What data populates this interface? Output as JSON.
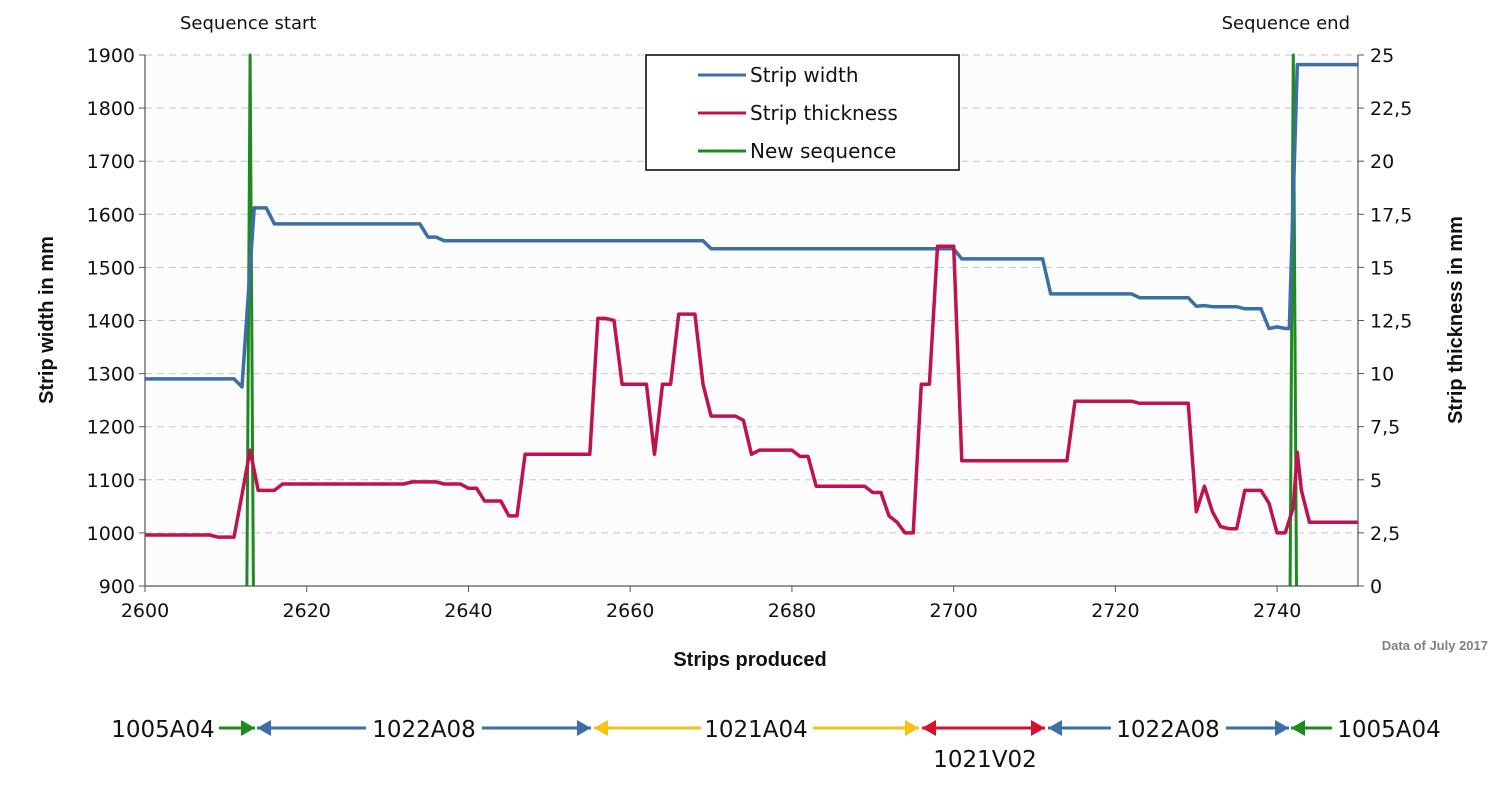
{
  "chart_data": {
    "type": "line",
    "xlabel": "Strips produced",
    "ylabel_left": "Strip width in mm",
    "ylabel_right": "Strip thickness in mm",
    "xlim": [
      2600,
      2750
    ],
    "ylim_left": [
      900,
      1900
    ],
    "ylim_right": [
      0,
      25
    ],
    "x_ticks": [
      "2600",
      "2620",
      "2640",
      "2660",
      "2680",
      "2700",
      "2720",
      "2740"
    ],
    "y_left_ticks": [
      "900",
      "1000",
      "1100",
      "1200",
      "1300",
      "1400",
      "1500",
      "1600",
      "1700",
      "1800",
      "1900"
    ],
    "y_right_ticks": [
      "0",
      "2,5",
      "5",
      "7,5",
      "10",
      "12,5",
      "15",
      "17,5",
      "20",
      "22,5",
      "25"
    ],
    "grid": "horizontal dashed",
    "legend_position": "top-center",
    "annotations": {
      "sequence_start": "Sequence start",
      "sequence_end": "Sequence end",
      "data_note": "Data of July 2017"
    },
    "series": [
      {
        "name": "Strip width",
        "axis": "left",
        "color": "#3b6fa6",
        "points": [
          [
            2600,
            1290
          ],
          [
            2611,
            1290
          ],
          [
            2612,
            1275
          ],
          [
            2613.5,
            1612
          ],
          [
            2615,
            1612
          ],
          [
            2616,
            1582
          ],
          [
            2634,
            1582
          ],
          [
            2635,
            1557
          ],
          [
            2636,
            1557
          ],
          [
            2637,
            1550
          ],
          [
            2669,
            1550
          ],
          [
            2670,
            1535
          ],
          [
            2700,
            1535
          ],
          [
            2701,
            1516
          ],
          [
            2711,
            1516
          ],
          [
            2712,
            1450
          ],
          [
            2722,
            1450
          ],
          [
            2723,
            1443
          ],
          [
            2729,
            1443
          ],
          [
            2730,
            1427
          ],
          [
            2731,
            1428
          ],
          [
            2732,
            1426
          ],
          [
            2735,
            1426
          ],
          [
            2736,
            1422
          ],
          [
            2738,
            1422
          ],
          [
            2739,
            1385
          ],
          [
            2740,
            1388
          ],
          [
            2741,
            1385
          ],
          [
            2741.5,
            1385
          ],
          [
            2742.5,
            1882
          ],
          [
            2750,
            1882
          ]
        ]
      },
      {
        "name": "Strip thickness",
        "axis": "right",
        "color": "#c0124d",
        "points": [
          [
            2600,
            2.4
          ],
          [
            2608,
            2.4
          ],
          [
            2609,
            2.3
          ],
          [
            2611,
            2.3
          ],
          [
            2612,
            4.3
          ],
          [
            2613,
            6.4
          ],
          [
            2614,
            4.5
          ],
          [
            2616,
            4.5
          ],
          [
            2617,
            4.8
          ],
          [
            2632,
            4.8
          ],
          [
            2633,
            4.9
          ],
          [
            2636,
            4.9
          ],
          [
            2637,
            4.8
          ],
          [
            2639,
            4.8
          ],
          [
            2640,
            4.6
          ],
          [
            2641,
            4.6
          ],
          [
            2642,
            4.0
          ],
          [
            2644,
            4.0
          ],
          [
            2645,
            3.3
          ],
          [
            2646,
            3.3
          ],
          [
            2647,
            6.2
          ],
          [
            2655,
            6.2
          ],
          [
            2656,
            12.6
          ],
          [
            2657,
            12.6
          ],
          [
            2658,
            12.5
          ],
          [
            2659,
            9.5
          ],
          [
            2662,
            9.5
          ],
          [
            2663,
            6.2
          ],
          [
            2664,
            9.5
          ],
          [
            2665,
            9.5
          ],
          [
            2666,
            12.8
          ],
          [
            2668,
            12.8
          ],
          [
            2669,
            9.5
          ],
          [
            2670,
            8.0
          ],
          [
            2673,
            8.0
          ],
          [
            2674,
            7.8
          ],
          [
            2675,
            6.2
          ],
          [
            2676,
            6.4
          ],
          [
            2680,
            6.4
          ],
          [
            2681,
            6.1
          ],
          [
            2682,
            6.1
          ],
          [
            2683,
            4.7
          ],
          [
            2689,
            4.7
          ],
          [
            2690,
            4.4
          ],
          [
            2691,
            4.4
          ],
          [
            2692,
            3.3
          ],
          [
            2693,
            3.0
          ],
          [
            2694,
            2.5
          ],
          [
            2695,
            2.5
          ],
          [
            2696,
            9.5
          ],
          [
            2697,
            9.5
          ],
          [
            2698,
            16.0
          ],
          [
            2700,
            16.0
          ],
          [
            2701,
            5.9
          ],
          [
            2714,
            5.9
          ],
          [
            2715,
            8.7
          ],
          [
            2722,
            8.7
          ],
          [
            2723,
            8.6
          ],
          [
            2728,
            8.6
          ],
          [
            2729,
            8.6
          ],
          [
            2730,
            3.5
          ],
          [
            2731,
            4.7
          ],
          [
            2732,
            3.5
          ],
          [
            2733,
            2.8
          ],
          [
            2734,
            2.7
          ],
          [
            2735,
            2.7
          ],
          [
            2736,
            4.5
          ],
          [
            2738,
            4.5
          ],
          [
            2739,
            3.9
          ],
          [
            2740,
            2.5
          ],
          [
            2741,
            2.5
          ],
          [
            2742,
            3.7
          ],
          [
            2742.5,
            6.3
          ],
          [
            2743,
            4.5
          ],
          [
            2744,
            3.0
          ],
          [
            2750,
            3.0
          ]
        ]
      },
      {
        "name": "New sequence",
        "axis": "right",
        "color": "#1f8a1f",
        "points": [
          [
            2612.6,
            0
          ],
          [
            2613,
            25
          ],
          [
            2613.4,
            0
          ]
        ],
        "points_2": [
          [
            2741.6,
            0
          ],
          [
            2742,
            25
          ],
          [
            2742.4,
            0
          ]
        ]
      }
    ],
    "segments": [
      {
        "label": "1005A04",
        "color": "#1f8a1f"
      },
      {
        "label": "1022A08",
        "color": "#3b6fa6"
      },
      {
        "label": "1021A04",
        "color": "#f5c218"
      },
      {
        "label": "1021V02",
        "color": "#d9102d"
      },
      {
        "label": "1022A08",
        "color": "#3b6fa6"
      },
      {
        "label": "1005A04",
        "color": "#1f8a1f"
      }
    ]
  }
}
